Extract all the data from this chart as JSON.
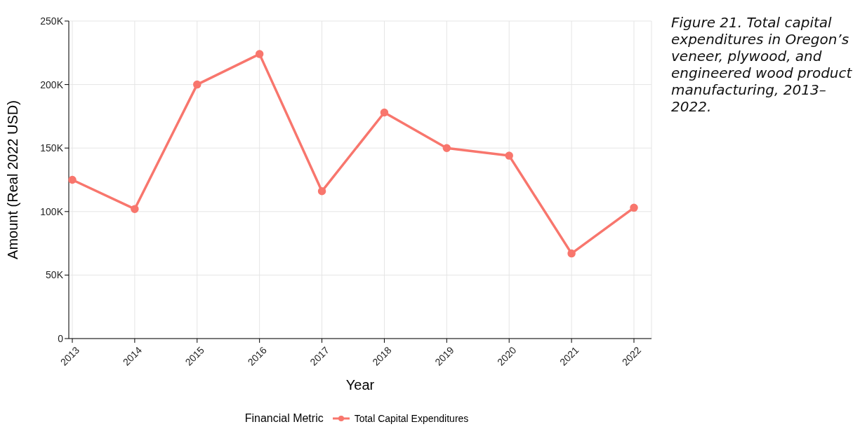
{
  "chart_data": {
    "type": "line",
    "title": "Figure 21. Total capital expenditures in Oregon’s veneer, plywood, and engineered wood product manufacturing, 2013–2022.",
    "xlabel": "Year",
    "ylabel": "Amount (Real 2022 USD)",
    "legend_title": "Financial Metric",
    "categories": [
      "2013",
      "2014",
      "2015",
      "2016",
      "2017",
      "2018",
      "2019",
      "2020",
      "2021",
      "2022"
    ],
    "series": [
      {
        "name": "Total Capital Expenditures",
        "color": "#f8766d",
        "values": [
          125000,
          102000,
          200000,
          224000,
          116000,
          178000,
          150000,
          144000,
          67000,
          103000
        ]
      }
    ],
    "ylim": [
      0,
      250000
    ],
    "yticks": [
      {
        "value": 0,
        "label": "0"
      },
      {
        "value": 50000,
        "label": "50K"
      },
      {
        "value": 100000,
        "label": "100K"
      },
      {
        "value": 150000,
        "label": "150K"
      },
      {
        "value": 200000,
        "label": "200K"
      },
      {
        "value": 250000,
        "label": "250K"
      }
    ],
    "grid": true,
    "legend": "bottom",
    "marker": "circle",
    "line_style": "solid"
  }
}
